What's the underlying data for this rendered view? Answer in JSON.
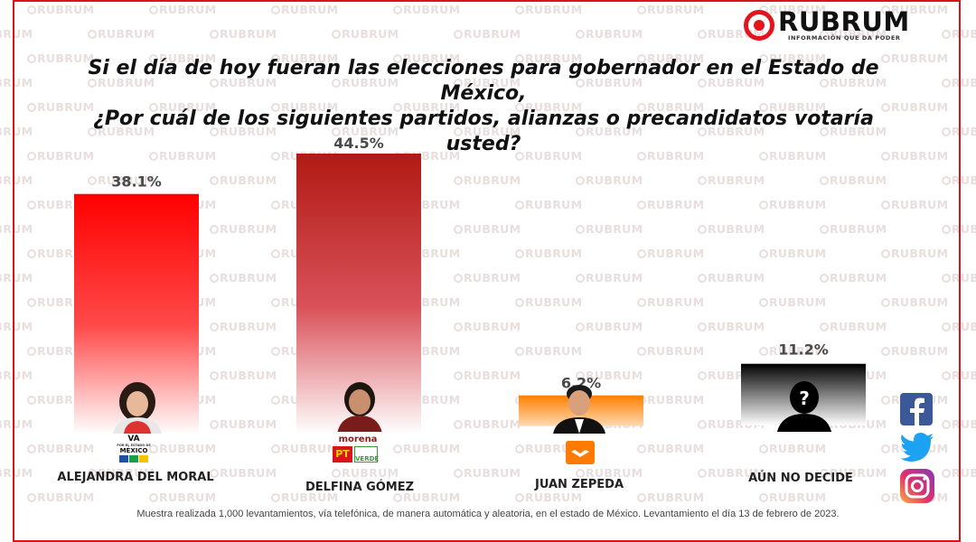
{
  "brand": {
    "name": "RUBRUM",
    "tagline": "INFORMACIÓN QUE DA PODER",
    "watermark": "RUBRUM",
    "accent_color": "#e2141d"
  },
  "title_line1": "Si el día de hoy fueran las elecciones para gobernador en el Estado de México,",
  "title_line2": "¿Por cuál de los siguientes partidos, alianzas o precandidatos votaría usted?",
  "chart_data": {
    "type": "bar",
    "categories": [
      "ALEJANDRA DEL MORAL",
      "DELFINA GÓMEZ",
      "JUAN ZEPEDA",
      "AÚN NO DECIDE"
    ],
    "values": [
      38.1,
      44.5,
      6.2,
      11.2
    ],
    "value_labels": [
      "38.1%",
      "44.5%",
      "6.2%",
      "11.2%"
    ],
    "colors": [
      "#ff1a1a",
      "#b71c1c",
      "#ff8c1a",
      "#111111"
    ],
    "ylim": [
      0,
      50
    ],
    "grid": false,
    "legend": "none"
  },
  "parties": {
    "va": {
      "name": "VA",
      "sub": "POR EL ESTADO DE",
      "place": "MÉXICO"
    },
    "morena": {
      "name": "morena",
      "pt": "PT",
      "verde": "VERDE"
    }
  },
  "footer": "Muestra realizada 1,000 levantamientos, vía telefónica, de manera automática y aleatoria, en el estado de México. Levantamiento el día 13 de febrero de 2023.",
  "social": {
    "icons": [
      "facebook-icon",
      "twitter-icon",
      "instagram-icon"
    ]
  }
}
